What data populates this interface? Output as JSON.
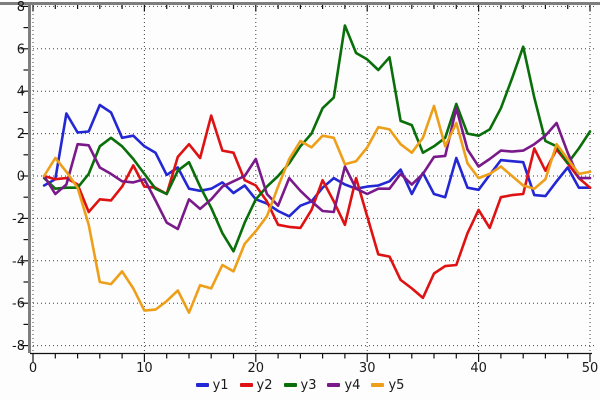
{
  "chart_data": {
    "type": "line",
    "title": "",
    "xlabel": "",
    "ylabel": "",
    "xlim": [
      0,
      50
    ],
    "ylim": [
      -8.4,
      8.4
    ],
    "grid": true,
    "legend_position": "bottom-center",
    "x_ticks": [
      0,
      10,
      20,
      30,
      40,
      50
    ],
    "y_ticks": [
      8,
      6,
      4,
      2,
      0,
      -2,
      -4,
      -6,
      -8
    ],
    "x_minor_tick_step": 2,
    "y_minor_tick_step": 1,
    "x": [
      1,
      2,
      3,
      4,
      5,
      6,
      7,
      8,
      9,
      10,
      11,
      12,
      13,
      14,
      15,
      16,
      17,
      18,
      19,
      20,
      21,
      22,
      23,
      24,
      25,
      26,
      27,
      28,
      29,
      30,
      31,
      32,
      33,
      34,
      35,
      36,
      37,
      38,
      39,
      40,
      41,
      42,
      43,
      44,
      45,
      46,
      47,
      48,
      49,
      50
    ],
    "series": [
      {
        "name": "y1",
        "color": "#2327d4",
        "values": [
          -0.45,
          -0.15,
          2.95,
          2.05,
          2.1,
          3.35,
          3.0,
          1.8,
          1.9,
          1.4,
          1.1,
          0.05,
          0.4,
          -0.6,
          -0.7,
          -0.6,
          -0.3,
          -0.8,
          -0.45,
          -1.1,
          -1.3,
          -1.65,
          -1.9,
          -1.4,
          -1.2,
          -0.55,
          -0.1,
          -0.4,
          -0.6,
          -0.5,
          -0.45,
          -0.25,
          0.3,
          -0.85,
          0.15,
          -0.85,
          -1.0,
          0.85,
          -0.55,
          -0.65,
          0.05,
          0.75,
          0.7,
          0.65,
          -0.9,
          -0.95,
          -0.25,
          0.4,
          -0.55,
          -0.55
        ]
      },
      {
        "name": "y2",
        "color": "#de1212",
        "values": [
          0.0,
          -0.15,
          -0.1,
          -0.4,
          -1.7,
          -1.1,
          -1.15,
          -0.5,
          0.5,
          -0.5,
          -0.55,
          -0.85,
          0.9,
          1.5,
          0.85,
          2.85,
          1.2,
          1.1,
          -0.2,
          -0.45,
          -1.2,
          -2.3,
          -2.4,
          -2.45,
          -1.6,
          -0.2,
          -1.2,
          -2.3,
          -0.1,
          -1.9,
          -3.7,
          -3.8,
          -4.9,
          -5.3,
          -5.75,
          -4.6,
          -4.25,
          -4.2,
          -2.7,
          -1.6,
          -2.45,
          -1.0,
          -0.9,
          -0.85,
          1.3,
          0.25,
          1.25,
          0.6,
          -0.1,
          -0.55
        ]
      },
      {
        "name": "y3",
        "color": "#0a6e0a",
        "values": [
          -0.1,
          -0.6,
          -0.55,
          -0.55,
          0.1,
          1.4,
          1.8,
          1.4,
          0.8,
          0.1,
          -0.6,
          -0.85,
          0.25,
          0.65,
          -0.5,
          -1.5,
          -2.7,
          -3.55,
          -2.2,
          -1.1,
          -0.5,
          0.0,
          0.6,
          1.4,
          2.0,
          3.2,
          3.7,
          7.1,
          5.8,
          5.5,
          5.0,
          5.6,
          2.6,
          2.4,
          1.1,
          1.4,
          1.8,
          3.4,
          2.0,
          1.9,
          2.2,
          3.2,
          4.6,
          6.1,
          3.7,
          1.65,
          1.4,
          0.6,
          1.3,
          2.1
        ]
      },
      {
        "name": "y4",
        "color": "#7a1a8a",
        "values": [
          0.0,
          -0.85,
          -0.4,
          1.5,
          1.45,
          0.4,
          0.1,
          -0.25,
          -0.3,
          -0.15,
          -1.15,
          -2.2,
          -2.5,
          -1.1,
          -1.55,
          -1.1,
          -0.5,
          -0.25,
          0.0,
          0.8,
          -0.85,
          -1.4,
          -0.1,
          -0.7,
          -1.2,
          -1.65,
          -1.7,
          0.45,
          -0.6,
          -0.85,
          -0.6,
          -0.6,
          0.1,
          -0.4,
          0.1,
          0.9,
          0.95,
          3.2,
          1.25,
          0.45,
          0.8,
          1.2,
          1.15,
          1.2,
          1.5,
          1.9,
          2.5,
          1.1,
          -0.1,
          -0.1
        ]
      },
      {
        "name": "y5",
        "color": "#ee9f19",
        "values": [
          0.0,
          0.85,
          0.2,
          -0.55,
          -2.3,
          -5.0,
          -5.1,
          -4.5,
          -5.3,
          -6.35,
          -6.3,
          -5.9,
          -5.4,
          -6.45,
          -5.15,
          -5.3,
          -4.2,
          -4.5,
          -3.2,
          -2.6,
          -1.9,
          -0.5,
          0.8,
          1.65,
          1.35,
          1.9,
          1.8,
          0.55,
          0.7,
          1.35,
          2.3,
          2.2,
          1.5,
          1.1,
          1.8,
          3.3,
          1.4,
          2.5,
          0.6,
          -0.1,
          0.1,
          0.45,
          0.0,
          -0.45,
          -0.6,
          -0.15,
          1.5,
          0.8,
          0.1,
          0.2
        ]
      }
    ]
  },
  "style": {
    "grid_color": "#404040",
    "frame_color": "#7e7e7e",
    "axis_color": "#111111",
    "label_color": "#1a1a1a",
    "background": "#fdfdfd"
  }
}
